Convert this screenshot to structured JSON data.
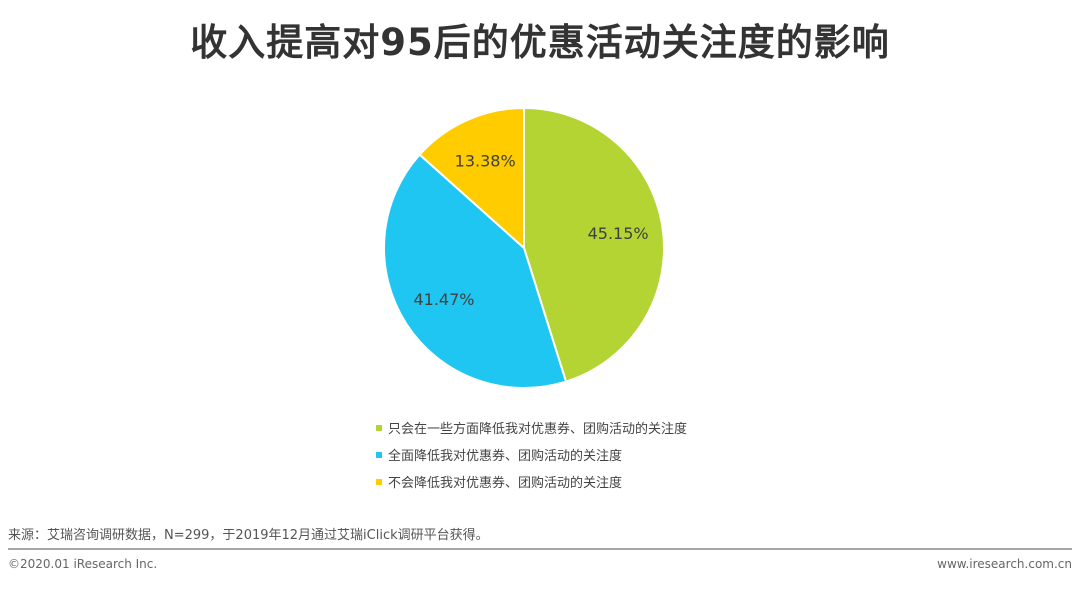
{
  "title": "收入提高对95后的优惠活动关注度的影响",
  "chart_data": {
    "type": "pie",
    "title": "收入提高对95后的优惠活动关注度的影响",
    "slices": [
      {
        "name": "只会在一些方面降低我对优惠券、团购活动的关注度",
        "value": 45.15,
        "label": "45.15%",
        "color": "#b4d433"
      },
      {
        "name": "全面降低我对优惠券、团购活动的关注度",
        "value": 41.47,
        "label": "41.47%",
        "color": "#1fc6f2"
      },
      {
        "name": "不会降低我对优惠券、团购活动的关注度",
        "value": 13.38,
        "label": "13.38%",
        "color": "#ffcc00"
      }
    ],
    "legend_position": "bottom"
  },
  "footer": {
    "source": "来源：艾瑞咨询调研数据，N=299，于2019年12月通过艾瑞iClick调研平台获得。",
    "copyright": "©2020.01 iResearch Inc.",
    "website": "www.iresearch.com.cn"
  }
}
